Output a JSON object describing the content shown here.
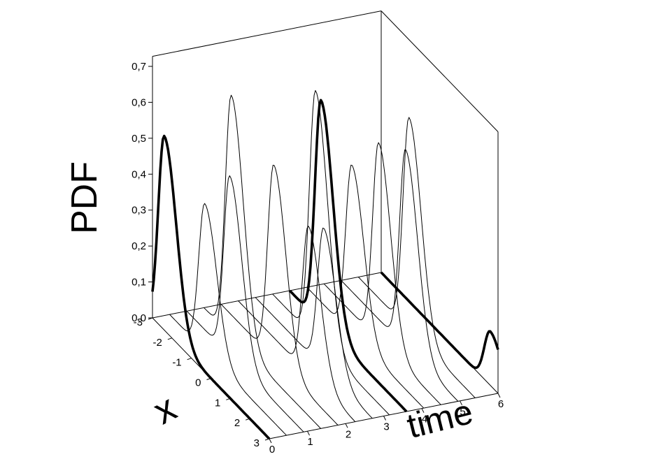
{
  "chart_data": {
    "type": "line",
    "subtype": "3d-waterfall",
    "title": "",
    "axes": {
      "z": {
        "label": "PDF",
        "range": [
          0,
          0.7
        ],
        "ticks": [
          "0,0",
          "0,1",
          "0,2",
          "0,3",
          "0,4",
          "0,5",
          "0,6",
          "0,7"
        ]
      },
      "x": {
        "label": "x",
        "range": [
          -3,
          3
        ],
        "ticks": [
          "-3",
          "-2",
          "-1",
          "0",
          "1",
          "2",
          "3"
        ]
      },
      "time": {
        "label": "time",
        "range": [
          0,
          6
        ],
        "ticks": [
          "0",
          "1",
          "2",
          "3",
          "4",
          "5",
          "6"
        ]
      }
    },
    "grid": false,
    "series": [
      {
        "time": 0.0,
        "peak_x": -2.4,
        "peak_pdf": 0.54,
        "style": "bold"
      },
      {
        "time": 0.45,
        "peak_x": -1.2,
        "peak_pdf": 0.41,
        "style": "thin"
      },
      {
        "time": 0.9,
        "peak_x": -0.8,
        "peak_pdf": 0.5,
        "style": "thin"
      },
      {
        "time": 1.35,
        "peak_x": -1.6,
        "peak_pdf": 0.67,
        "style": "thin"
      },
      {
        "time": 1.8,
        "peak_x": -0.3,
        "peak_pdf": 0.54,
        "style": "thin"
      },
      {
        "time": 2.25,
        "peak_x": 0.6,
        "peak_pdf": 0.41,
        "style": "thin"
      },
      {
        "time": 2.7,
        "peak_x": 0.5,
        "peak_pdf": 0.39,
        "style": "thin"
      },
      {
        "time": 3.15,
        "peak_x": -0.8,
        "peak_pdf": 0.69,
        "style": "thin"
      },
      {
        "time": 3.6,
        "peak_x": -1.4,
        "peak_pdf": 0.62,
        "style": "bold"
      },
      {
        "time": 4.05,
        "peak_x": -0.7,
        "peak_pdf": 0.47,
        "style": "thin"
      },
      {
        "time": 4.5,
        "peak_x": -0.2,
        "peak_pdf": 0.55,
        "style": "thin"
      },
      {
        "time": 4.95,
        "peak_x": 0.3,
        "peak_pdf": 0.55,
        "style": "thin"
      },
      {
        "time": 5.4,
        "peak_x": -0.4,
        "peak_pdf": 0.59,
        "style": "thin"
      },
      {
        "time": 6.0,
        "peak_x": 2.6,
        "peak_pdf": 0.15,
        "style": "bold"
      }
    ]
  }
}
